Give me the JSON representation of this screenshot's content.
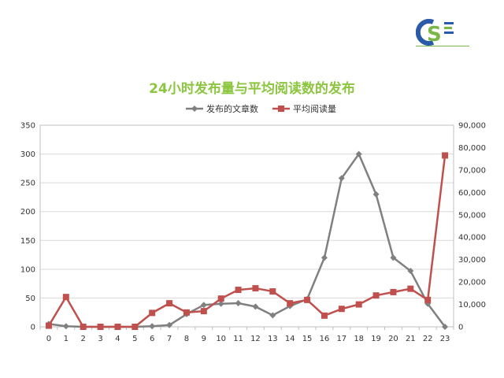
{
  "logo": {
    "letters": "CS",
    "subtitle": "数据鑫易"
  },
  "chart_data": {
    "type": "line",
    "title": "24小时发布量与平均阅读数的发布",
    "x": [
      "0",
      "1",
      "2",
      "3",
      "4",
      "5",
      "6",
      "7",
      "8",
      "9",
      "10",
      "11",
      "12",
      "13",
      "14",
      "15",
      "16",
      "17",
      "18",
      "19",
      "20",
      "21",
      "22",
      "23"
    ],
    "series": [
      {
        "name": "发布的文章数",
        "axis": "left",
        "color": "#808080",
        "values": [
          5,
          1,
          0,
          0,
          0,
          0,
          1,
          3,
          22,
          38,
          40,
          41,
          35,
          20,
          36,
          48,
          120,
          258,
          300,
          230,
          120,
          97,
          40,
          0
        ]
      },
      {
        "name": "平均阅读量",
        "axis": "right",
        "color": "#c0504d",
        "values": [
          500,
          13300,
          0,
          0,
          0,
          0,
          6200,
          10500,
          6400,
          7000,
          12600,
          16500,
          17200,
          15800,
          10500,
          12000,
          5000,
          8000,
          10000,
          14000,
          15500,
          17000,
          12000,
          76500
        ]
      }
    ],
    "y_left": {
      "min": 0,
      "max": 350,
      "step": 50
    },
    "y_right": {
      "min": 0,
      "max": 90000,
      "step": 10000
    },
    "grid": true,
    "legend": "top-center"
  }
}
